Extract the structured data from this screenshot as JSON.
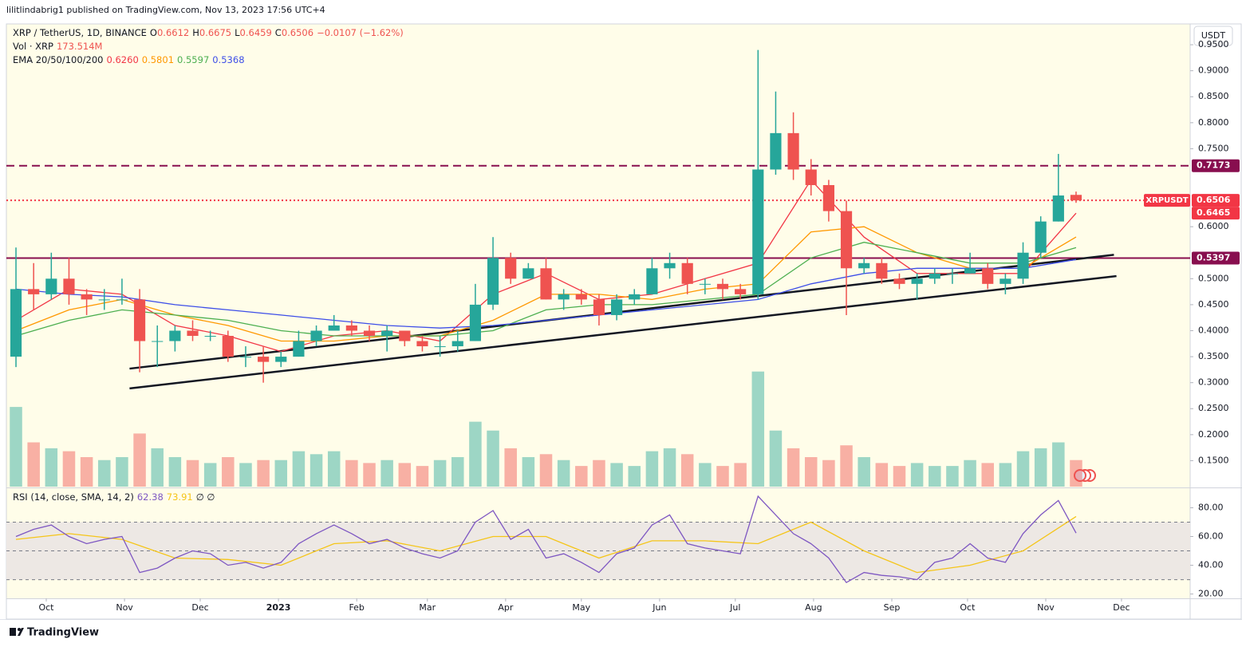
{
  "header": {
    "published": "lilitlindabrig1 published on TradingView.com, Nov 13, 2023 17:56 UTC+4"
  },
  "footer": {
    "brand": "TradingView"
  },
  "chart_data": {
    "type": "candlestick",
    "title": "XRP / TetherUS, 1D, BINANCE",
    "ohlc_legend": [
      {
        "label": "O",
        "value": 0.6612
      },
      {
        "label": "H",
        "value": 0.6675
      },
      {
        "label": "L",
        "value": 0.6459
      },
      {
        "label": "C",
        "value": 0.6506
      }
    ],
    "change": "−0.0107 (−1.62%)",
    "volume_legend": {
      "label": "Vol · XRP",
      "value": "173.514M"
    },
    "ema_legend": "EMA 20/50/100/200",
    "currency": "USDT",
    "up_color": "#26a69a",
    "down_color": "#ef5350",
    "x": [
      -12,
      -5,
      2,
      9,
      16,
      23,
      30,
      37,
      44,
      51,
      58,
      65,
      72,
      79,
      86,
      93,
      100,
      107,
      114,
      121,
      128,
      135,
      142,
      149,
      156,
      163,
      170,
      177,
      184,
      191,
      198,
      205,
      212,
      219,
      226,
      233,
      240,
      247,
      254,
      261,
      268,
      275,
      282,
      289,
      296,
      303,
      310,
      317,
      324,
      331,
      338,
      345,
      352,
      359,
      366,
      373,
      380,
      387,
      394,
      401,
      408
    ],
    "open": [
      0.35,
      0.48,
      0.47,
      0.5,
      0.47,
      0.46,
      0.46,
      0.46,
      0.38,
      0.38,
      0.4,
      0.39,
      0.39,
      0.35,
      0.35,
      0.34,
      0.35,
      0.38,
      0.4,
      0.41,
      0.4,
      0.39,
      0.4,
      0.38,
      0.37,
      0.37,
      0.38,
      0.45,
      0.54,
      0.5,
      0.52,
      0.46,
      0.47,
      0.46,
      0.43,
      0.46,
      0.47,
      0.52,
      0.53,
      0.49,
      0.49,
      0.48,
      0.47,
      0.71,
      0.78,
      0.71,
      0.68,
      0.63,
      0.52,
      0.53,
      0.5,
      0.49,
      0.5,
      0.51,
      0.51,
      0.52,
      0.49,
      0.5,
      0.55,
      0.61,
      0.6612
    ],
    "high": [
      0.56,
      0.53,
      0.55,
      0.54,
      0.48,
      0.48,
      0.5,
      0.48,
      0.41,
      0.41,
      0.42,
      0.4,
      0.4,
      0.37,
      0.37,
      0.36,
      0.4,
      0.41,
      0.43,
      0.42,
      0.41,
      0.41,
      0.4,
      0.39,
      0.39,
      0.4,
      0.49,
      0.58,
      0.55,
      0.53,
      0.54,
      0.48,
      0.48,
      0.47,
      0.47,
      0.48,
      0.54,
      0.55,
      0.54,
      0.5,
      0.5,
      0.49,
      0.94,
      0.86,
      0.82,
      0.73,
      0.69,
      0.65,
      0.54,
      0.54,
      0.51,
      0.51,
      0.52,
      0.52,
      0.55,
      0.53,
      0.51,
      0.57,
      0.62,
      0.74,
      0.6675
    ],
    "low": [
      0.33,
      0.44,
      0.46,
      0.45,
      0.43,
      0.44,
      0.45,
      0.32,
      0.33,
      0.36,
      0.38,
      0.38,
      0.34,
      0.33,
      0.3,
      0.33,
      0.35,
      0.37,
      0.4,
      0.39,
      0.38,
      0.36,
      0.37,
      0.36,
      0.35,
      0.36,
      0.38,
      0.44,
      0.49,
      0.5,
      0.46,
      0.44,
      0.45,
      0.41,
      0.42,
      0.45,
      0.47,
      0.5,
      0.47,
      0.47,
      0.46,
      0.46,
      0.46,
      0.7,
      0.69,
      0.66,
      0.61,
      0.43,
      0.51,
      0.49,
      0.48,
      0.46,
      0.49,
      0.49,
      0.51,
      0.48,
      0.47,
      0.49,
      0.54,
      0.61,
      0.6459
    ],
    "close": [
      0.48,
      0.47,
      0.5,
      0.47,
      0.46,
      0.46,
      0.46,
      0.38,
      0.38,
      0.4,
      0.39,
      0.39,
      0.35,
      0.35,
      0.34,
      0.35,
      0.38,
      0.4,
      0.41,
      0.4,
      0.39,
      0.4,
      0.38,
      0.37,
      0.37,
      0.38,
      0.45,
      0.54,
      0.5,
      0.52,
      0.46,
      0.47,
      0.46,
      0.43,
      0.46,
      0.47,
      0.52,
      0.53,
      0.49,
      0.49,
      0.48,
      0.47,
      0.71,
      0.78,
      0.71,
      0.68,
      0.63,
      0.52,
      0.53,
      0.5,
      0.49,
      0.5,
      0.51,
      0.51,
      0.52,
      0.49,
      0.5,
      0.55,
      0.61,
      0.66,
      0.6506
    ],
    "volume": [
      2700,
      1500,
      1300,
      1200,
      1000,
      900,
      1000,
      1800,
      1300,
      1000,
      900,
      800,
      1000,
      800,
      900,
      900,
      1200,
      1100,
      1200,
      900,
      800,
      900,
      800,
      700,
      900,
      1000,
      2200,
      1900,
      1300,
      1000,
      1100,
      900,
      700,
      900,
      800,
      700,
      1200,
      1300,
      1100,
      800,
      700,
      800,
      3900,
      1900,
      1300,
      1000,
      900,
      1400,
      1000,
      800,
      700,
      800,
      700,
      700,
      900,
      800,
      800,
      1200,
      1300,
      1500,
      900
    ],
    "volume_ylim": [
      0,
      4000
    ],
    "xlim": [
      -15.8,
      453.2
    ],
    "xticks": [
      {
        "value": 0,
        "label": "Oct"
      },
      {
        "value": 31,
        "label": "Nov"
      },
      {
        "value": 61,
        "label": "Dec"
      },
      {
        "value": 92,
        "label": "2023"
      },
      {
        "value": 123,
        "label": "Feb"
      },
      {
        "value": 151,
        "label": "Mar"
      },
      {
        "value": 182,
        "label": "Apr"
      },
      {
        "value": 212,
        "label": "May"
      },
      {
        "value": 243,
        "label": "Jun"
      },
      {
        "value": 273,
        "label": "Jul"
      },
      {
        "value": 304,
        "label": "Aug"
      },
      {
        "value": 335,
        "label": "Sep"
      },
      {
        "value": 365,
        "label": "Oct"
      },
      {
        "value": 396,
        "label": "Nov"
      },
      {
        "value": 426,
        "label": "Dec"
      }
    ],
    "ylim": [
      0.1,
      0.99
    ],
    "yticks": [
      {
        "value": 0.15,
        "label": "0.1500"
      },
      {
        "value": 0.2,
        "label": "0.2000"
      },
      {
        "value": 0.25,
        "label": "0.2500"
      },
      {
        "value": 0.3,
        "label": "0.3000"
      },
      {
        "value": 0.35,
        "label": "0.3500"
      },
      {
        "value": 0.4,
        "label": "0.4000"
      },
      {
        "value": 0.45,
        "label": "0.4500"
      },
      {
        "value": 0.5,
        "label": "0.5000"
      },
      {
        "value": 0.6,
        "label": "0.6000"
      },
      {
        "value": 0.75,
        "label": "0.7500"
      },
      {
        "value": 0.8,
        "label": "0.8000"
      },
      {
        "value": 0.85,
        "label": "0.8500"
      },
      {
        "value": 0.9,
        "label": "0.9000"
      },
      {
        "value": 0.95,
        "label": "0.9500"
      }
    ],
    "emas": [
      {
        "color": "#f23645",
        "legend_label": "0.6260",
        "x": [
          -12,
          9,
          30,
          51,
          72,
          93,
          114,
          135,
          156,
          177,
          198,
          219,
          240,
          261,
          282,
          303,
          324,
          345,
          366,
          387,
          408
        ],
        "values": [
          0.42,
          0.48,
          0.47,
          0.41,
          0.39,
          0.36,
          0.39,
          0.4,
          0.38,
          0.47,
          0.51,
          0.46,
          0.47,
          0.5,
          0.53,
          0.69,
          0.58,
          0.51,
          0.51,
          0.51,
          0.626
        ]
      },
      {
        "color": "#ff9800",
        "legend_label": "0.5801",
        "x": [
          -12,
          9,
          30,
          51,
          72,
          93,
          114,
          135,
          156,
          177,
          198,
          219,
          240,
          261,
          282,
          303,
          324,
          345,
          366,
          387,
          408
        ],
        "values": [
          0.4,
          0.44,
          0.46,
          0.43,
          0.41,
          0.38,
          0.38,
          0.39,
          0.39,
          0.42,
          0.47,
          0.47,
          0.46,
          0.48,
          0.49,
          0.59,
          0.6,
          0.55,
          0.52,
          0.52,
          0.5801
        ]
      },
      {
        "color": "#4caf50",
        "legend_label": "0.5597",
        "x": [
          -12,
          9,
          30,
          51,
          72,
          93,
          114,
          135,
          156,
          177,
          198,
          219,
          240,
          261,
          282,
          303,
          324,
          345,
          366,
          387,
          408
        ],
        "values": [
          0.39,
          0.42,
          0.44,
          0.43,
          0.42,
          0.4,
          0.39,
          0.39,
          0.39,
          0.4,
          0.44,
          0.45,
          0.45,
          0.46,
          0.47,
          0.54,
          0.57,
          0.55,
          0.53,
          0.53,
          0.5597
        ]
      },
      {
        "color": "#3d4ee8",
        "legend_label": "0.5368",
        "x": [
          -12,
          9,
          30,
          51,
          72,
          93,
          114,
          135,
          156,
          177,
          198,
          219,
          240,
          261,
          282,
          303,
          324,
          345,
          366,
          387,
          408
        ],
        "values": [
          0.48,
          0.47,
          0.465,
          0.45,
          0.44,
          0.43,
          0.42,
          0.41,
          0.405,
          0.41,
          0.42,
          0.43,
          0.44,
          0.45,
          0.46,
          0.49,
          0.51,
          0.52,
          0.52,
          0.52,
          0.5368
        ]
      }
    ],
    "levels": [
      {
        "value": 0.7173,
        "label": "0.7173",
        "color": "#880e4f",
        "style": "dashed"
      },
      {
        "value": 0.6506,
        "label": "0.6506",
        "tag": "XRPUSDT",
        "color": "#f23645",
        "style": "dotted"
      },
      {
        "value": 0.5397,
        "label": "0.5397",
        "color": "#880e4f",
        "style": "solid"
      }
    ],
    "extra_label": {
      "label": "0.6465",
      "color": "#f23645"
    },
    "trendlines": [
      {
        "x": [
          33,
          424
        ],
        "y": [
          0.289,
          0.505
        ],
        "color": "#131722"
      },
      {
        "x": [
          33,
          423
        ],
        "y": [
          0.327,
          0.546
        ],
        "color": "#131722"
      }
    ],
    "rsi": {
      "type": "line",
      "title": "RSI (14, close, SMA, 14, 2)",
      "legend_extra": "∅ ∅",
      "color": "#7e57c2",
      "x": [
        -12,
        -5,
        2,
        9,
        16,
        23,
        30,
        37,
        44,
        51,
        58,
        65,
        72,
        79,
        86,
        93,
        100,
        107,
        114,
        121,
        128,
        135,
        142,
        149,
        156,
        163,
        170,
        177,
        184,
        191,
        198,
        205,
        212,
        219,
        226,
        233,
        240,
        247,
        254,
        261,
        268,
        275,
        282,
        289,
        296,
        303,
        310,
        317,
        324,
        331,
        338,
        345,
        352,
        359,
        366,
        373,
        380,
        387,
        394,
        401,
        408
      ],
      "values": [
        60,
        65,
        68,
        60,
        55,
        58,
        60,
        35,
        38,
        45,
        50,
        48,
        40,
        42,
        38,
        42,
        55,
        62,
        68,
        62,
        55,
        58,
        52,
        48,
        45,
        50,
        70,
        78,
        58,
        65,
        45,
        48,
        42,
        35,
        48,
        52,
        68,
        75,
        55,
        52,
        50,
        48,
        88,
        75,
        62,
        55,
        45,
        28,
        35,
        33,
        32,
        30,
        42,
        45,
        55,
        45,
        42,
        62,
        75,
        85,
        62.38
      ],
      "sma": {
        "color": "#f5c518",
        "x": [
          -12,
          9,
          30,
          51,
          72,
          93,
          114,
          135,
          156,
          177,
          198,
          219,
          240,
          261,
          282,
          303,
          324,
          345,
          366,
          387,
          408
        ],
        "values": [
          58,
          62,
          58,
          45,
          44,
          40,
          55,
          57,
          50,
          60,
          60,
          45,
          57,
          57,
          55,
          70,
          50,
          35,
          40,
          50,
          73.91
        ]
      },
      "ylim": [
        17,
        93
      ],
      "yticks": [
        {
          "value": 20,
          "label": "20.00"
        },
        {
          "value": 40,
          "label": "40.00"
        },
        {
          "value": 60,
          "label": "60.00"
        },
        {
          "value": 80,
          "label": "80.00"
        }
      ],
      "levels": [
        70,
        50,
        30
      ],
      "band": [
        30,
        70
      ]
    }
  }
}
